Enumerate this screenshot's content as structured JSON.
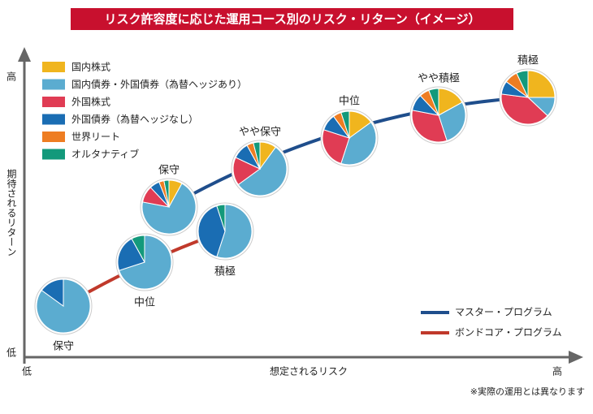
{
  "chart_data": {
    "type": "pie",
    "title": "リスク許容度に応じた運用コース別のリスク・リターン（イメージ）",
    "xlabel": "想定されるリスク",
    "ylabel": "期待されるリターン",
    "x_low": "低",
    "x_high": "高",
    "y_low": "低",
    "y_high": "高",
    "note": "※実際の運用とは異なります",
    "categories": [
      "国内株式",
      "国内債券・外国債券（為替ヘッジあり）",
      "外国株式",
      "外国債券（為替ヘッジなし）",
      "世界リート",
      "オルタナティブ"
    ],
    "colors": [
      "#f0b51e",
      "#5bacd0",
      "#e03c54",
      "#1a6db3",
      "#ee7d22",
      "#13997b"
    ],
    "series": [
      {
        "name": "マスター・プログラム",
        "color": "#1f4e8c",
        "pies": [
          {
            "label": "保守",
            "values": [
              8,
              70,
              10,
              6,
              3,
              3
            ]
          },
          {
            "label": "やや保守",
            "values": [
              10,
              55,
              17,
              10,
              4,
              4
            ]
          },
          {
            "label": "中位",
            "values": [
              15,
              40,
              25,
              10,
              5,
              5
            ]
          },
          {
            "label": "やや積極",
            "values": [
              17,
              28,
              33,
              10,
              6,
              6
            ]
          },
          {
            "label": "積極",
            "values": [
              25,
              12,
              40,
              8,
              8,
              7
            ]
          }
        ]
      },
      {
        "name": "ボンドコア・プログラム",
        "color": "#c0392b",
        "pies": [
          {
            "label": "保守",
            "values": [
              0,
              85,
              0,
              15,
              0,
              0
            ]
          },
          {
            "label": "中位",
            "values": [
              0,
              70,
              0,
              22,
              0,
              8
            ]
          },
          {
            "label": "積極",
            "values": [
              0,
              55,
              0,
              40,
              0,
              5
            ]
          }
        ]
      }
    ]
  }
}
